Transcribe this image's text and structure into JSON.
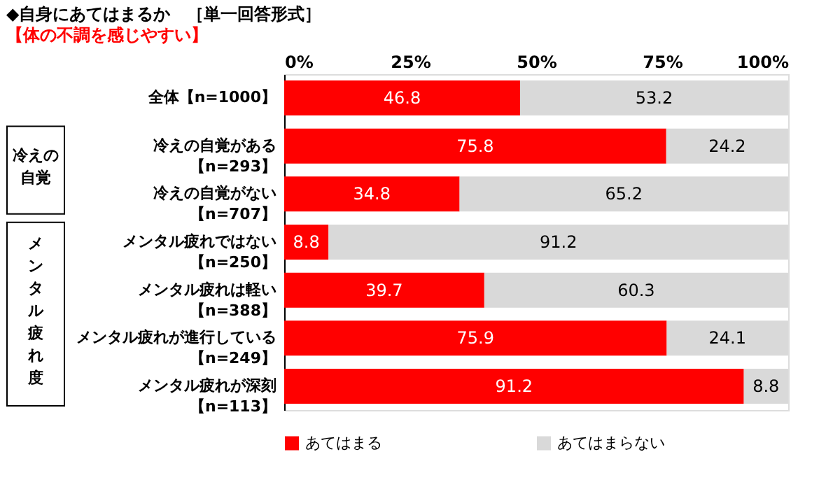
{
  "chart_data": {
    "type": "bar",
    "orientation": "horizontal",
    "stacked": true,
    "title": "◆自身にあてはまるか　［単一回答形式］",
    "subtitle": "【体の不調を感じやすい】",
    "categories": [
      "全体【n=1000】",
      "冷えの自覚がある【n=293】",
      "冷えの自覚がない【n=707】",
      "メンタル疲れではない【n=250】",
      "メンタル疲れは軽い【n=388】",
      "メンタル疲れが進行している【n=249】",
      "メンタル疲れが深刻【n=113】"
    ],
    "series": [
      {
        "name": "あてはまる",
        "color": "#ff0000",
        "values": [
          46.8,
          75.8,
          34.8,
          8.8,
          39.7,
          75.9,
          91.2
        ]
      },
      {
        "name": "あてはまらない",
        "color": "#d9d9d9",
        "values": [
          53.2,
          24.2,
          65.2,
          91.2,
          60.3,
          24.1,
          8.8
        ]
      }
    ],
    "xlim": [
      0,
      100
    ],
    "xticks": [
      {
        "value": 0,
        "label": "0%"
      },
      {
        "value": 25,
        "label": "25%"
      },
      {
        "value": 50,
        "label": "50%"
      },
      {
        "value": 75,
        "label": "75%"
      },
      {
        "value": 100,
        "label": "100%"
      }
    ],
    "annotations": [
      "冷えの自覚",
      "メンタル疲れ度"
    ],
    "data_labels": true,
    "legend": "bottom",
    "grid": false
  }
}
